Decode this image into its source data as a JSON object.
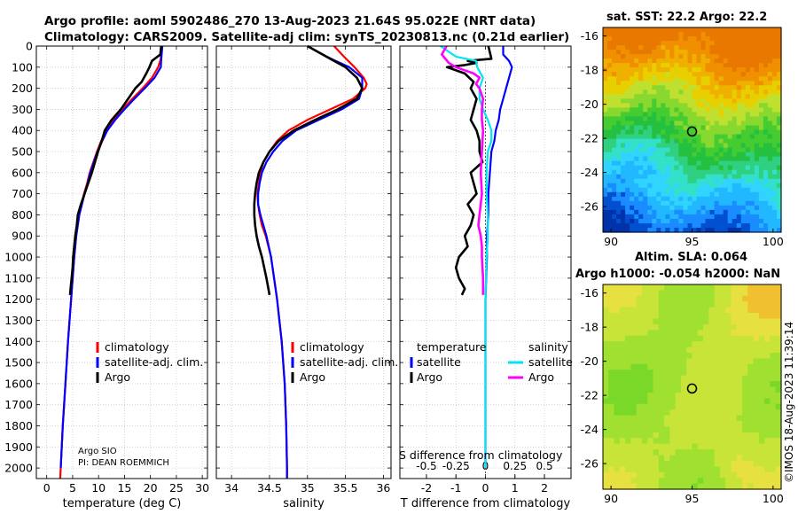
{
  "header": {
    "title_line1": "Argo profile: aoml 5902486_270 13-Aug-2023 21.64S 95.022E (NRT data)",
    "title_line2": "Climatology: CARS2009. Satellite-adj clim: synTS_20230813.nc (0.21d earlier)"
  },
  "depth_ticks": [
    0,
    100,
    200,
    300,
    400,
    500,
    600,
    700,
    800,
    900,
    1000,
    1100,
    1200,
    1300,
    1400,
    1500,
    1600,
    1700,
    1800,
    1900,
    2000
  ],
  "chart_data": [
    {
      "type": "line",
      "name": "temperature",
      "xlabel": "temperature (deg C)",
      "xlim": [
        -2,
        31
      ],
      "ylim": [
        2050,
        0
      ],
      "xticks": [
        0,
        5,
        10,
        15,
        20,
        25,
        30
      ],
      "xtick_labels": [
        "0",
        "5",
        "10",
        "15",
        "20",
        "25",
        "30"
      ],
      "colors": {
        "climatology": "#ff0000",
        "satellite": "#0000ff",
        "argo": "#000000"
      },
      "legend": [
        "climatology",
        "satellite-adj. clim.",
        "Argo"
      ],
      "annotation1": "Argo SIO",
      "annotation2": "PI: DEAN ROEMMICH",
      "series": [
        {
          "name": "climatology",
          "depth": [
            0,
            60,
            100,
            150,
            200,
            250,
            300,
            350,
            400,
            450,
            500,
            550,
            600,
            650,
            700,
            800,
            900,
            1000,
            1200,
            1400,
            1600,
            1800,
            2000,
            2050
          ],
          "values": [
            22,
            22,
            21.5,
            20.3,
            18.5,
            16.5,
            14.6,
            12.9,
            11.5,
            10.5,
            9.7,
            9.0,
            8.3,
            7.8,
            7.2,
            6.2,
            5.7,
            5.3,
            4.7,
            4.1,
            3.6,
            3.1,
            2.7,
            2.6
          ]
        },
        {
          "name": "satellite",
          "depth": [
            0,
            60,
            100,
            150,
            200,
            250,
            300,
            350,
            400,
            450,
            500,
            550,
            600,
            650,
            700,
            800,
            900,
            1000,
            1200,
            1400,
            1600,
            1800,
            2000
          ],
          "values": [
            22.3,
            22.1,
            22,
            20.8,
            18.9,
            16.9,
            15,
            13.2,
            11.7,
            10.7,
            9.8,
            9.1,
            8.4,
            7.9,
            7.3,
            6.3,
            5.7,
            5.3,
            4.7,
            4.1,
            3.6,
            3.1,
            2.7
          ]
        },
        {
          "name": "argo",
          "depth": [
            0,
            40,
            70,
            100,
            130,
            170,
            200,
            250,
            300,
            350,
            400,
            450,
            500,
            550,
            600,
            650,
            700,
            750,
            800,
            850,
            900,
            950,
            1000,
            1050,
            1100,
            1150,
            1180
          ],
          "values": [
            22.1,
            21.9,
            20.3,
            19.8,
            19.2,
            18.3,
            17.1,
            15.7,
            14.3,
            12.5,
            11.2,
            10.6,
            9.9,
            9.3,
            8.7,
            8.0,
            7.3,
            6.6,
            6.0,
            5.8,
            5.5,
            5.3,
            5.1,
            5.0,
            4.8,
            4.6,
            4.5
          ]
        }
      ]
    },
    {
      "type": "line",
      "name": "salinity",
      "xlabel": "salinity",
      "xlim": [
        33.8,
        36.1
      ],
      "ylim": [
        2050,
        0
      ],
      "xticks": [
        34,
        34.5,
        35,
        35.5,
        36
      ],
      "xtick_labels": [
        "34",
        "34.5",
        "35",
        "35.5",
        "36"
      ],
      "colors": {
        "climatology": "#ff0000",
        "satellite": "#0000ff",
        "argo": "#000000"
      },
      "legend": [
        "climatology",
        "satellite-adj. clim.",
        "Argo"
      ],
      "series": [
        {
          "name": "climatology",
          "depth": [
            0,
            50,
            100,
            150,
            180,
            200,
            250,
            300,
            350,
            400,
            450,
            500,
            550,
            600,
            650,
            700,
            750,
            800,
            850,
            900,
            1000,
            1200,
            1400,
            1600,
            1800,
            2000,
            2050
          ],
          "values": [
            35.35,
            35.48,
            35.62,
            35.74,
            35.78,
            35.76,
            35.6,
            35.3,
            35.0,
            34.75,
            34.6,
            34.5,
            34.42,
            34.38,
            34.36,
            34.34,
            34.35,
            34.37,
            34.4,
            34.45,
            34.52,
            34.6,
            34.66,
            34.7,
            34.72,
            34.73,
            34.73
          ]
        },
        {
          "name": "satellite",
          "depth": [
            0,
            50,
            100,
            150,
            200,
            250,
            300,
            350,
            400,
            450,
            500,
            550,
            600,
            650,
            700,
            750,
            800,
            850,
            900,
            1000,
            1200,
            1400,
            1600,
            1800,
            2000,
            2050
          ],
          "values": [
            35.0,
            35.25,
            35.55,
            35.72,
            35.72,
            35.68,
            35.45,
            35.15,
            34.85,
            34.67,
            34.55,
            34.46,
            34.4,
            34.37,
            34.35,
            34.35,
            34.38,
            34.42,
            34.46,
            34.52,
            34.6,
            34.66,
            34.7,
            34.72,
            34.73,
            34.73
          ]
        },
        {
          "name": "argo",
          "depth": [
            0,
            20,
            60,
            100,
            150,
            200,
            250,
            300,
            350,
            400,
            450,
            500,
            550,
            600,
            650,
            700,
            750,
            780,
            800,
            850,
            900,
            950,
            1000,
            1100,
            1180
          ],
          "values": [
            35.0,
            35.1,
            35.3,
            35.5,
            35.65,
            35.72,
            35.65,
            35.4,
            35.1,
            34.82,
            34.62,
            34.5,
            34.42,
            34.36,
            34.33,
            34.31,
            34.3,
            34.3,
            34.3,
            34.31,
            34.33,
            34.36,
            34.4,
            34.46,
            34.5
          ]
        }
      ]
    },
    {
      "type": "line",
      "name": "differences",
      "xlabel": "T difference from climatology",
      "xlabel_top": "S difference from climatology",
      "xlim": [
        -2.9,
        2.9
      ],
      "ylim": [
        2050,
        0
      ],
      "xticks": [
        -2,
        -1,
        0,
        1,
        2
      ],
      "xtick_labels": [
        "-2",
        "-1",
        "0",
        "1",
        "2"
      ],
      "sticks": [
        -0.5,
        -0.25,
        0,
        0.25,
        0.5
      ],
      "stick_labels": [
        "-0.5",
        "-0.25",
        "0",
        "0.25",
        "0.5"
      ],
      "s_scale": 4,
      "colors": {
        "t_satellite": "#0000ff",
        "t_argo": "#000000",
        "s_satellite": "#00e5ee",
        "s_argo": "#ff00ff",
        "zero": "#555555"
      },
      "legend_temp_title": "temperature",
      "legend_sal_title": "salinity",
      "legend_temp": [
        "satellite",
        "Argo"
      ],
      "legend_sal": [
        "satellite",
        "Argo"
      ],
      "series": [
        {
          "name": "t_satellite",
          "depth": [
            0,
            40,
            70,
            100,
            150,
            200,
            250,
            300,
            350,
            400,
            450,
            500,
            600,
            700,
            800,
            900,
            1000,
            1200,
            1400,
            1600,
            2000
          ],
          "values": [
            0.6,
            0.6,
            0.8,
            0.9,
            0.8,
            0.7,
            0.6,
            0.5,
            0.45,
            0.35,
            0.3,
            0.2,
            0.15,
            0.1,
            0.1,
            0.05,
            0.05,
            0,
            0,
            0,
            0
          ]
        },
        {
          "name": "t_argo",
          "depth": [
            0,
            60,
            70,
            80,
            90,
            100,
            130,
            170,
            200,
            250,
            300,
            350,
            400,
            450,
            500,
            550,
            600,
            650,
            700,
            750,
            800,
            850,
            900,
            950,
            1000,
            1050,
            1100,
            1150,
            1180
          ],
          "values": [
            0.1,
            0.2,
            -0.6,
            -0.3,
            -0.7,
            -1.3,
            -0.7,
            -0.4,
            -0.5,
            -0.3,
            -0.4,
            -0.5,
            -0.3,
            -0.2,
            -0.2,
            -0.1,
            -0.5,
            -0.4,
            -0.3,
            -0.6,
            -0.4,
            -0.5,
            -0.7,
            -0.6,
            -0.9,
            -1.0,
            -0.9,
            -0.7,
            -0.8
          ]
        },
        {
          "name": "s_satellite",
          "depth": [
            0,
            50,
            70,
            100,
            150,
            200,
            250,
            300,
            350,
            400,
            450,
            500,
            600,
            700,
            800,
            900,
            1000,
            1200,
            1400,
            1600,
            2000
          ],
          "values": [
            -0.38,
            -0.25,
            -0.08,
            -0.07,
            -0.02,
            -0.05,
            -0.05,
            -0.02,
            0.02,
            0.05,
            0.05,
            0.02,
            0.01,
            0.01,
            0.02,
            0.02,
            0.01,
            0,
            0,
            0,
            0
          ]
        },
        {
          "name": "s_argo",
          "depth": [
            0,
            40,
            80,
            100,
            130,
            150,
            180,
            200,
            250,
            300,
            350,
            400,
            500,
            600,
            700,
            800,
            850,
            900,
            950,
            1000,
            1100,
            1180
          ],
          "values": [
            -0.33,
            -0.37,
            -0.31,
            -0.25,
            -0.1,
            -0.05,
            -0.08,
            -0.05,
            -0.02,
            -0.03,
            -0.03,
            -0.02,
            -0.03,
            -0.04,
            -0.03,
            -0.05,
            -0.06,
            -0.04,
            -0.03,
            -0.03,
            -0.02,
            -0.02
          ]
        }
      ]
    },
    {
      "type": "heatmap",
      "name": "sst_map",
      "title": "sat. SST: 22.2 Argo: 22.2",
      "xlim": [
        89.5,
        100.5
      ],
      "ylim": [
        -27.5,
        -15.5
      ],
      "xticks": [
        90,
        95,
        100
      ],
      "yticks": [
        -16,
        -18,
        -20,
        -22,
        -24,
        -26
      ],
      "marker": {
        "lon": 95.0,
        "lat": -21.6
      },
      "palette": [
        "#0032a8",
        "#0050d0",
        "#1a8cff",
        "#22b8ff",
        "#30d4ff",
        "#33e0c8",
        "#2fd080",
        "#25c040",
        "#44cc30",
        "#88d830",
        "#c0e030",
        "#e8d000",
        "#f0b000",
        "#f09000",
        "#e87800"
      ]
    },
    {
      "type": "heatmap",
      "name": "sla_map",
      "title_line1": "Altim. SLA: 0.064",
      "title_line2": "Argo h1000: -0.054 h2000: NaN",
      "xlim": [
        89.5,
        100.5
      ],
      "ylim": [
        -27.5,
        -15.5
      ],
      "xticks": [
        90,
        95,
        100
      ],
      "yticks": [
        -16,
        -18,
        -20,
        -22,
        -24,
        -26
      ],
      "marker": {
        "lon": 95.0,
        "lat": -21.6
      },
      "palette": [
        "#60d020",
        "#7ad828",
        "#a0e030",
        "#c8e438",
        "#e6e040",
        "#f0c030",
        "#f0a020"
      ]
    }
  ],
  "footer": {
    "credit": "©IMOS 18-Aug-2023 11:39:14"
  }
}
